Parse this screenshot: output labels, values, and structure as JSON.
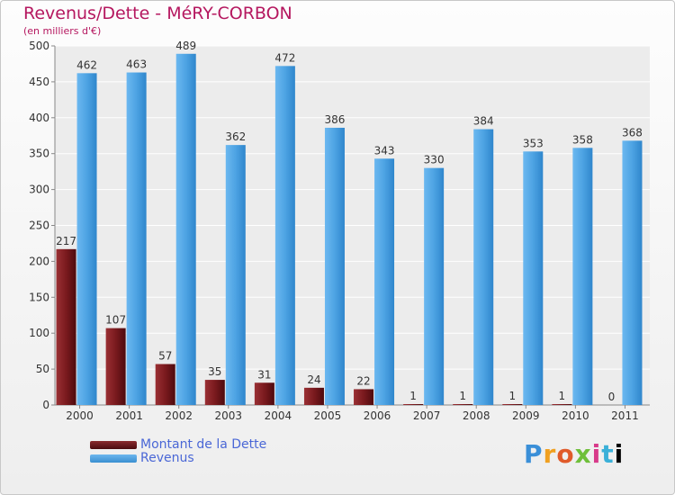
{
  "chart_data": {
    "type": "bar",
    "title": "Revenus/Dette - MéRY-CORBON",
    "subtitle": "(en milliers d'€)",
    "categories": [
      "2000",
      "2001",
      "2002",
      "2003",
      "2004",
      "2005",
      "2006",
      "2007",
      "2008",
      "2009",
      "2010",
      "2011"
    ],
    "series": [
      {
        "name": "Montant de la Dette",
        "color": "#7a1a1e",
        "values": [
          217,
          107,
          57,
          35,
          31,
          24,
          22,
          1,
          1,
          1,
          1,
          0
        ]
      },
      {
        "name": "Revenus",
        "color": "#4da3e3",
        "values": [
          462,
          463,
          489,
          362,
          472,
          386,
          343,
          330,
          384,
          353,
          358,
          368
        ]
      }
    ],
    "yticks": [
      0,
      50,
      100,
      150,
      200,
      250,
      300,
      350,
      400,
      450,
      500
    ],
    "ylim": [
      0,
      500
    ],
    "grid": true,
    "legend": "bottom-left"
  },
  "logo_text": "Proxiti"
}
